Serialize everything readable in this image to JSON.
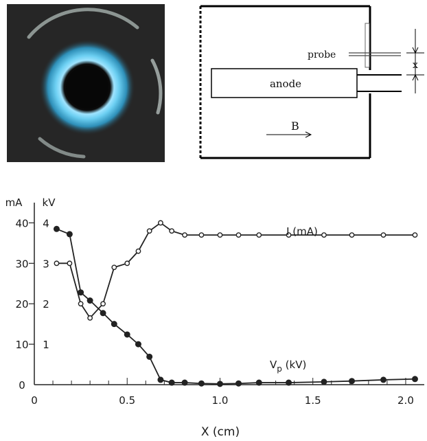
{
  "schematic": {
    "probe_label": "probe",
    "anode_label": "anode",
    "x_label": "x",
    "b_label": "B"
  },
  "chart_data": {
    "type": "line",
    "xlabel": "X (cm)",
    "x_ticks": [
      "0",
      "0.5",
      "1.0",
      "1.5",
      "2.0"
    ],
    "x_tick_values": [
      0,
      0.5,
      1.0,
      1.5,
      2.0
    ],
    "xlim": [
      0,
      2.1
    ],
    "y_axis_units": [
      "mA",
      "kV"
    ],
    "y_ticks_mA": [
      "0",
      "10",
      "20",
      "30",
      "40"
    ],
    "y_ticks_kV": [
      "1",
      "2",
      "3",
      "4"
    ],
    "y_tick_values_mA": [
      0,
      10,
      20,
      30,
      40
    ],
    "ylim_mA": [
      0,
      45
    ],
    "series": [
      {
        "name": "I (mA)",
        "marker": "open-circle",
        "x": [
          0.12,
          0.19,
          0.25,
          0.3,
          0.37,
          0.43,
          0.5,
          0.56,
          0.62,
          0.68,
          0.74,
          0.81,
          0.9,
          1.0,
          1.1,
          1.21,
          1.37,
          1.56,
          1.71,
          1.88,
          2.05
        ],
        "values": [
          30,
          30,
          20,
          16.5,
          20,
          29,
          30,
          33,
          38,
          40,
          38,
          37,
          37,
          37,
          37,
          37,
          37,
          37,
          37,
          37,
          37
        ]
      },
      {
        "name": "Vp (kV)",
        "label_main": "V",
        "label_sub": "p",
        "label_unit": " (kV)",
        "marker": "filled-circle",
        "x": [
          0.12,
          0.19,
          0.25,
          0.3,
          0.37,
          0.43,
          0.5,
          0.56,
          0.62,
          0.68,
          0.74,
          0.81,
          0.9,
          1.0,
          1.1,
          1.21,
          1.37,
          1.56,
          1.71,
          1.88,
          2.05
        ],
        "values": [
          3.85,
          3.72,
          2.28,
          2.08,
          1.77,
          1.5,
          1.24,
          1.0,
          0.69,
          0.12,
          0.05,
          0.05,
          0.03,
          0.02,
          0.03,
          0.05,
          0.05,
          0.07,
          0.09,
          0.12,
          0.14
        ]
      }
    ],
    "colors": {
      "photo_background": "#262626",
      "ring_glow": "#5fc8ee",
      "ring_core": "#b8ecff",
      "arc": "#9fa9a6",
      "line": "#222222"
    }
  }
}
